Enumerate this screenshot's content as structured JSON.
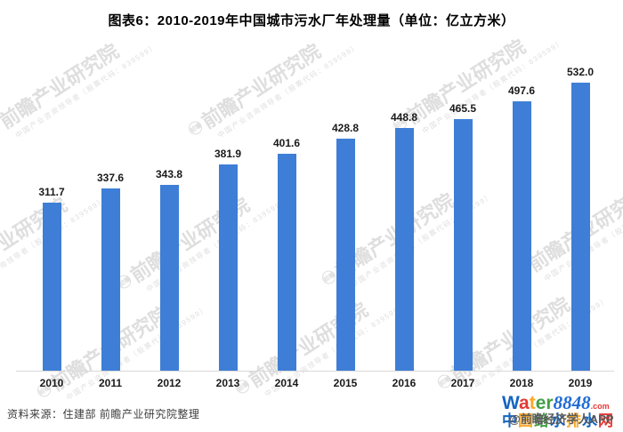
{
  "title": "图表6：2010-2019年中国城市污水厂年处理量（单位：亿立方米）",
  "chart_data": {
    "type": "bar",
    "title": "图表6：2010-2019年中国城市污水厂年处理量（单位：亿立方米）",
    "categories": [
      "2010",
      "2011",
      "2012",
      "2013",
      "2014",
      "2015",
      "2016",
      "2017",
      "2018",
      "2019"
    ],
    "values": [
      311.7,
      337.6,
      343.8,
      381.9,
      401.6,
      428.8,
      448.8,
      465.5,
      497.6,
      532.0
    ],
    "unit": "亿立方米",
    "xlabel": "",
    "ylabel": "",
    "ylim": [
      0,
      560
    ],
    "grid": false,
    "legend": "none",
    "bar_color": "#3e7ed6",
    "value_labels_shown": true
  },
  "watermark": {
    "badge": "前瞻",
    "main": "前瞻产业研究院",
    "sub": "中国产业咨询领导者（股票代码：839599）"
  },
  "footer": {
    "source": "资料来源：住建部 前瞻产业研究院整理"
  },
  "logo": {
    "water_letters": [
      {
        "ch": "W",
        "color": "#1565c0"
      },
      {
        "ch": "a",
        "color": "#e53935"
      },
      {
        "ch": "t",
        "color": "#f9a825"
      },
      {
        "ch": "e",
        "color": "#43a047"
      },
      {
        "ch": "r",
        "color": "#43a047"
      }
    ],
    "numbers": "8848",
    "numbers_color": "#1e6bd6",
    "dotcom": ".com",
    "dotcom_color": "#e53935",
    "cn_letters": [
      {
        "ch": "中",
        "color": "#1565c0"
      },
      {
        "ch": "国",
        "color": "#f9a825"
      },
      {
        "ch": "给",
        "color": "#43a047"
      },
      {
        "ch": "水",
        "color": "#1565c0"
      },
      {
        "ch": "排",
        "color": "#f9a825"
      },
      {
        "ch": "水",
        "color": "#1565c0"
      },
      {
        "ch": "网",
        "color": "#e53935"
      }
    ],
    "overlay": "@前瞻经济学人APP"
  }
}
